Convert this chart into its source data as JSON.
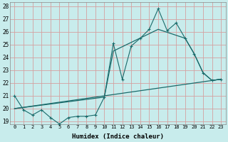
{
  "title": "",
  "xlabel": "Humidex (Indice chaleur)",
  "bg_color": "#c8ecec",
  "grid_color": "#d4a0a0",
  "line_color": "#1a6b6b",
  "xlim_min": -0.5,
  "xlim_max": 23.5,
  "ylim_min": 18.8,
  "ylim_max": 28.3,
  "yticks": [
    19,
    20,
    21,
    22,
    23,
    24,
    25,
    26,
    27,
    28
  ],
  "xticks": [
    0,
    1,
    2,
    3,
    4,
    5,
    6,
    7,
    8,
    9,
    10,
    11,
    12,
    13,
    14,
    15,
    16,
    17,
    18,
    19,
    20,
    21,
    22,
    23
  ],
  "series1_x": [
    0,
    1,
    2,
    3,
    4,
    5,
    6,
    7,
    8,
    9,
    10,
    11,
    12,
    13,
    14,
    15,
    16,
    17,
    18,
    19,
    20,
    21,
    22,
    23
  ],
  "series1_y": [
    21.0,
    19.9,
    19.5,
    19.9,
    19.3,
    18.8,
    19.3,
    19.4,
    19.4,
    19.5,
    20.9,
    25.1,
    22.3,
    24.9,
    25.5,
    26.2,
    27.8,
    26.1,
    26.7,
    25.5,
    24.3,
    22.8,
    22.2,
    22.3
  ],
  "series2_x": [
    0,
    23
  ],
  "series2_y": [
    20.0,
    22.3
  ],
  "series3_x": [
    0,
    10,
    11,
    16,
    19,
    20,
    21,
    22,
    23
  ],
  "series3_y": [
    20.0,
    20.9,
    24.5,
    26.2,
    25.5,
    24.3,
    22.8,
    22.2,
    22.3
  ]
}
